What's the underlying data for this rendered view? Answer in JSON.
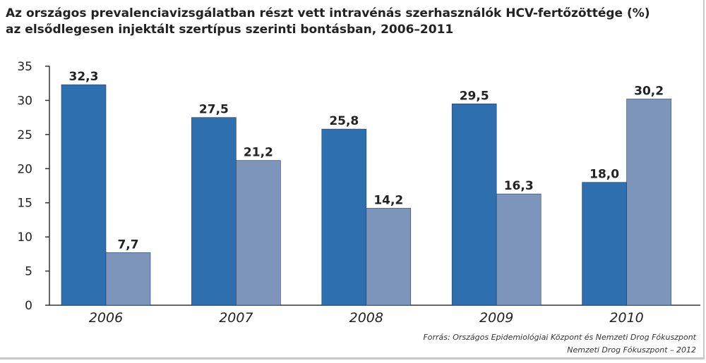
{
  "title_line1": "Az országos prevalenciavizsgálatban részt vett intravénás szerhasználók HCV-fertőzöttége (%)",
  "title_line2": "az elsődlegesen injektált szertípus szerinti bontásban, 2006–2011",
  "source_line1": "Forrás: Országos Epidemiológiai Központ és Nemzeti Drog Fókuszpont",
  "source_line2": "Nemzeti Drog Fókuszpont – 2012",
  "colors": {
    "series1": "#2e6fb0",
    "series2": "#7e95bb",
    "axis": "#333333"
  },
  "chart_data": {
    "type": "bar",
    "categories": [
      "2006",
      "2007",
      "2008",
      "2009",
      "2010"
    ],
    "series": [
      {
        "values": [
          32.3,
          27.5,
          25.8,
          29.5,
          18.0
        ],
        "labels": [
          "32,3",
          "27,5",
          "25,8",
          "29,5",
          "18,0"
        ]
      },
      {
        "values": [
          7.7,
          21.2,
          14.2,
          16.3,
          30.2
        ],
        "labels": [
          "7,7",
          "21,2",
          "14,2",
          "16,3",
          "30,2"
        ]
      }
    ],
    "ylim": [
      0,
      35
    ],
    "yticks": [
      0,
      5,
      10,
      15,
      20,
      25,
      30,
      35
    ],
    "grid": false,
    "legend": "none"
  }
}
